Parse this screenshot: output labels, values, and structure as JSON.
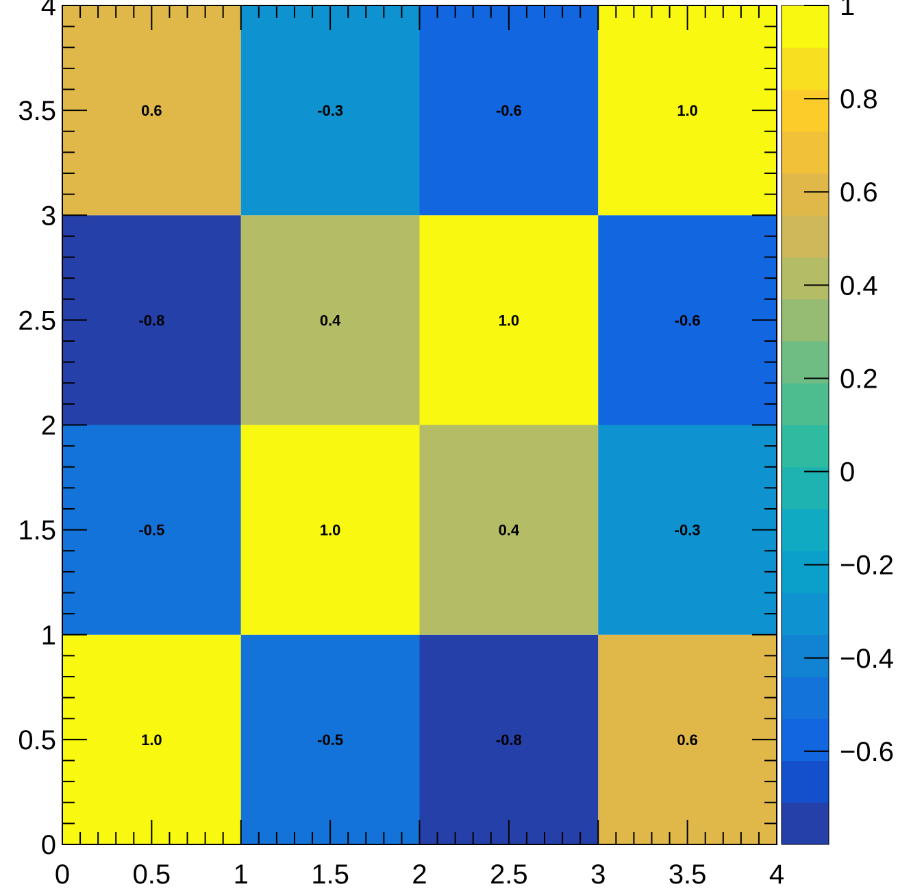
{
  "chart_data": {
    "type": "heatmap",
    "title": "",
    "xlabel": "",
    "ylabel": "",
    "xlim": [
      0,
      4
    ],
    "ylim": [
      0,
      4
    ],
    "x_bin_edges": [
      0,
      1,
      2,
      3,
      4
    ],
    "y_bin_edges": [
      0,
      1,
      2,
      3,
      4
    ],
    "x_ticks": [
      0,
      0.5,
      1,
      1.5,
      2,
      2.5,
      3,
      3.5,
      4
    ],
    "x_tick_labels": [
      "0",
      "0.5",
      "1",
      "1.5",
      "2",
      "2.5",
      "3",
      "3.5",
      "4"
    ],
    "y_ticks": [
      0,
      0.5,
      1,
      1.5,
      2,
      2.5,
      3,
      3.5,
      4
    ],
    "y_tick_labels": [
      "0",
      "0.5",
      "1",
      "1.5",
      "2",
      "2.5",
      "3",
      "3.5",
      "4"
    ],
    "rows_bottom_to_top": [
      [
        1.0,
        -0.5,
        -0.8,
        0.6
      ],
      [
        -0.5,
        1.0,
        0.4,
        -0.3
      ],
      [
        -0.8,
        0.4,
        1.0,
        -0.6
      ],
      [
        0.6,
        -0.3,
        -0.6,
        1.0
      ]
    ],
    "cell_labels_bottom_to_top": [
      [
        "1.0",
        "-0.5",
        "-0.8",
        "0.6"
      ],
      [
        "-0.5",
        "1.0",
        "0.4",
        "-0.3"
      ],
      [
        "-0.8",
        "0.4",
        "1.0",
        "-0.6"
      ],
      [
        "0.6",
        "-0.3",
        "-0.6",
        "1.0"
      ]
    ],
    "colorbar": {
      "range": [
        -0.8,
        1.0
      ],
      "ticks": [
        1,
        0.8,
        0.6,
        0.4,
        0.2,
        0,
        -0.2,
        -0.4,
        -0.6
      ],
      "tick_labels": [
        "1",
        "0.8",
        "0.6",
        "0.4",
        "0.2",
        "0",
        "−0.2",
        "−0.4",
        "−0.6"
      ],
      "palette": [
        "#2540a8",
        "#1550cc",
        "#1266e0",
        "#1473d8",
        "#1183d2",
        "#0e92d0",
        "#0aa0ca",
        "#10abc2",
        "#1eb3b0",
        "#2ebba0",
        "#4dbd90",
        "#6fbd82",
        "#95bc72",
        "#b5bc66",
        "#cfb85a",
        "#e0b84a",
        "#f2c13a",
        "#fccd2a",
        "#f8e020",
        "#f8f810"
      ]
    }
  }
}
